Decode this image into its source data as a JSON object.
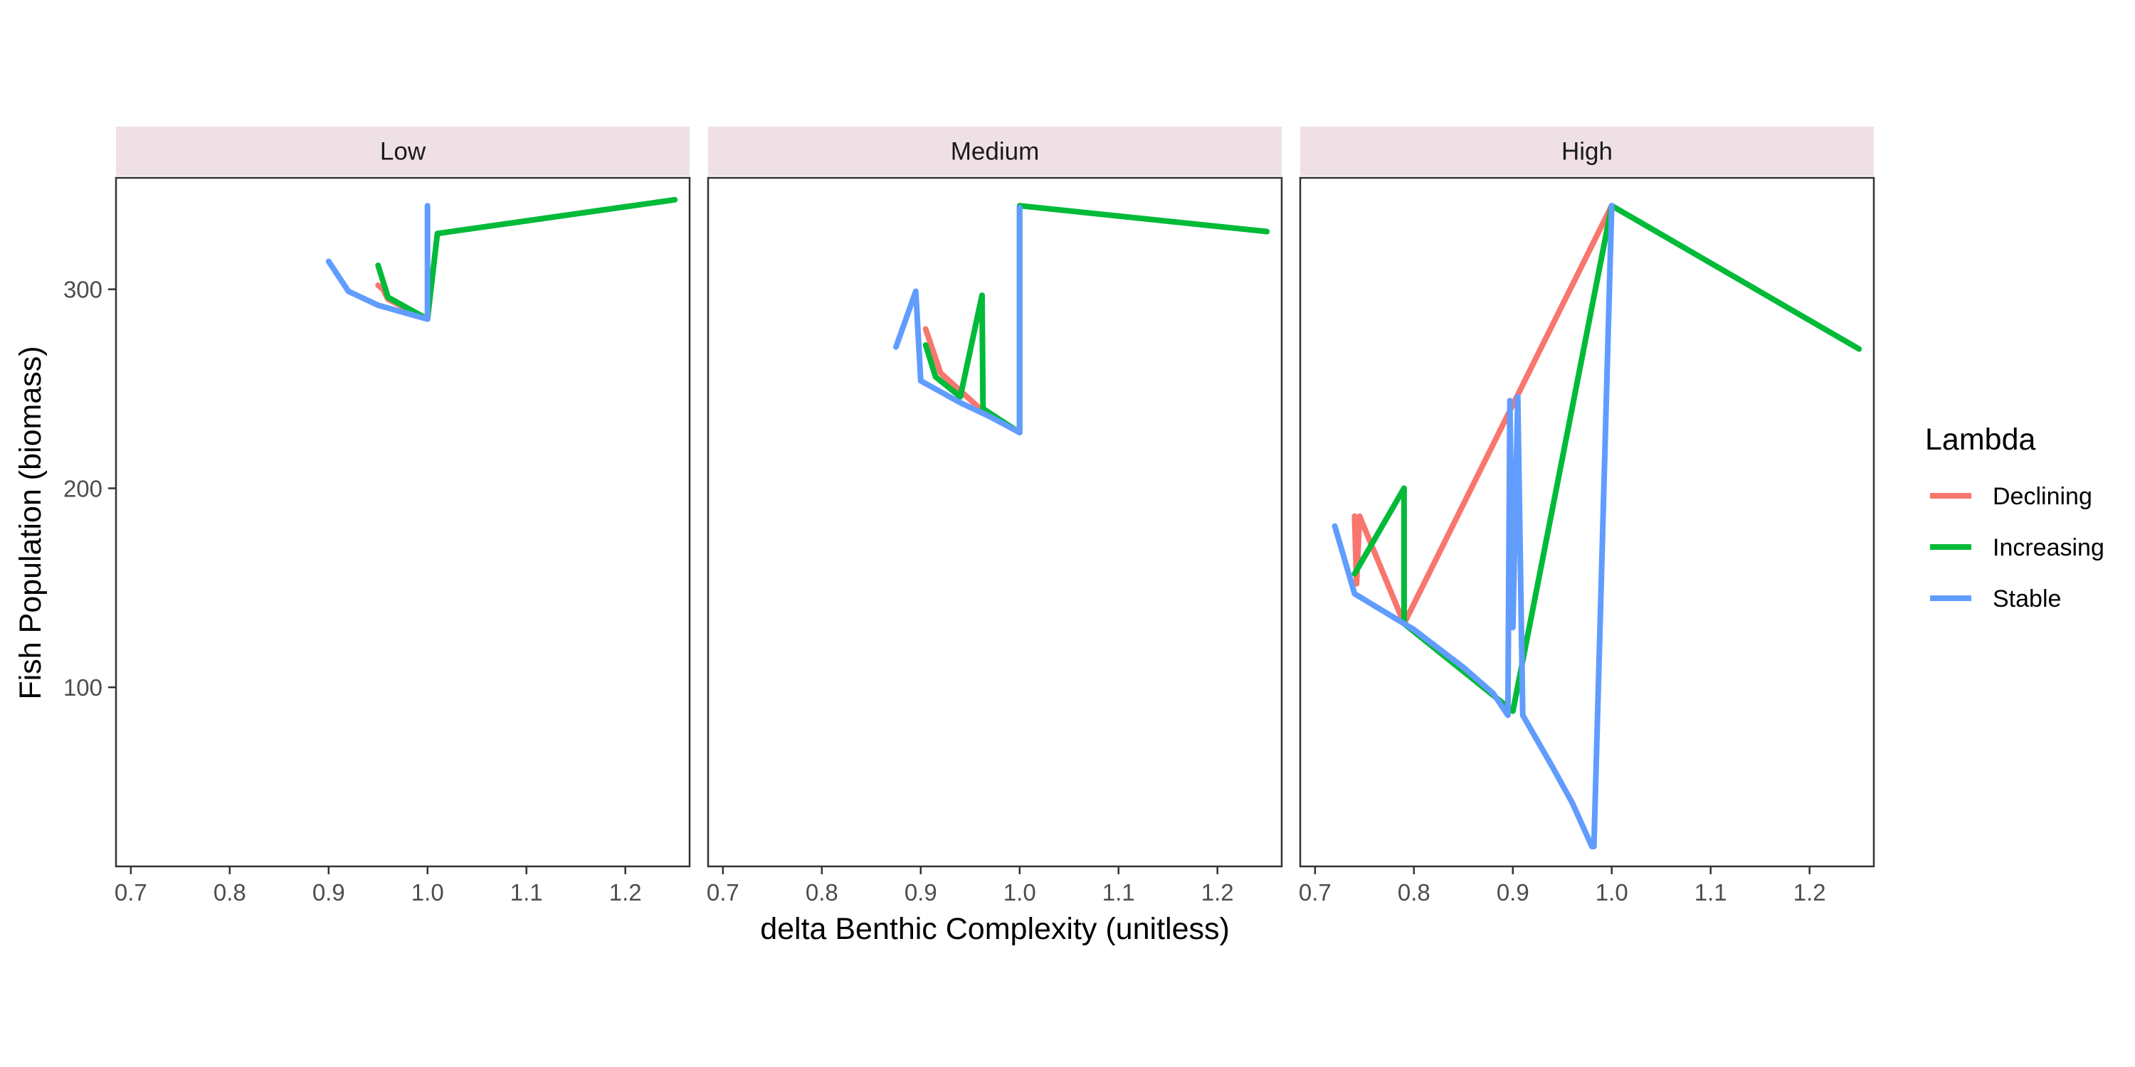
{
  "chart_data": {
    "type": "line",
    "xlabel": "delta Benthic Complexity (unitless)",
    "ylabel": "Fish Population (biomass)",
    "xlim": [
      0.685,
      1.265
    ],
    "ylim": [
      10,
      356
    ],
    "x_ticks": [
      0.7,
      0.8,
      0.9,
      1.0,
      1.1,
      1.2
    ],
    "x_tick_labels": [
      "0.7",
      "0.8",
      "0.9",
      "1.0",
      "1.1",
      "1.2"
    ],
    "y_ticks": [
      100,
      200,
      300
    ],
    "y_tick_labels": [
      "100",
      "200",
      "300"
    ],
    "legend": {
      "title": "Lambda",
      "placement": "right",
      "entries": [
        {
          "name": "Declining",
          "color": "#F8766D"
        },
        {
          "name": "Increasing",
          "color": "#00BA38"
        },
        {
          "name": "Stable",
          "color": "#619CFF"
        }
      ]
    },
    "panels": [
      {
        "label": "Low",
        "series": [
          {
            "name": "Declining",
            "points": [
              [
                0.95,
                302
              ],
              [
                0.955,
                300
              ],
              [
                0.96,
                295
              ],
              [
                1.0,
                285
              ]
            ]
          },
          {
            "name": "Increasing",
            "points": [
              [
                0.95,
                312
              ],
              [
                0.96,
                296
              ],
              [
                1.0,
                285
              ],
              [
                1.01,
                328
              ],
              [
                1.25,
                345
              ]
            ]
          },
          {
            "name": "Stable",
            "points": [
              [
                0.9,
                314
              ],
              [
                0.92,
                299
              ],
              [
                0.95,
                292
              ],
              [
                1.0,
                285
              ],
              [
                1.0,
                342
              ]
            ]
          }
        ]
      },
      {
        "label": "Medium",
        "series": [
          {
            "name": "Declining",
            "points": [
              [
                0.905,
                280
              ],
              [
                0.92,
                258
              ],
              [
                0.96,
                240
              ],
              [
                1.0,
                228
              ]
            ]
          },
          {
            "name": "Increasing",
            "points": [
              [
                0.905,
                272
              ],
              [
                0.915,
                256
              ],
              [
                0.94,
                246
              ],
              [
                0.962,
                297
              ],
              [
                0.963,
                240
              ],
              [
                1.0,
                228
              ],
              [
                1.0,
                342
              ],
              [
                1.25,
                329
              ]
            ]
          },
          {
            "name": "Stable",
            "points": [
              [
                0.875,
                271
              ],
              [
                0.895,
                299
              ],
              [
                0.9,
                254
              ],
              [
                0.94,
                243
              ],
              [
                0.97,
                236
              ],
              [
                1.0,
                228
              ],
              [
                1.0,
                341
              ]
            ]
          }
        ]
      },
      {
        "label": "High",
        "series": [
          {
            "name": "Declining",
            "points": [
              [
                0.74,
                186
              ],
              [
                0.742,
                152
              ],
              [
                0.745,
                186
              ],
              [
                0.79,
                132
              ],
              [
                1.0,
                342
              ]
            ]
          },
          {
            "name": "Increasing",
            "points": [
              [
                0.74,
                157
              ],
              [
                0.79,
                200
              ],
              [
                0.79,
                132
              ],
              [
                0.85,
                108
              ],
              [
                0.9,
                88
              ],
              [
                1.0,
                342
              ],
              [
                1.25,
                270
              ]
            ]
          },
          {
            "name": "Stable",
            "points": [
              [
                0.72,
                181
              ],
              [
                0.74,
                147
              ],
              [
                0.8,
                129
              ],
              [
                0.85,
                110
              ],
              [
                0.88,
                97
              ],
              [
                0.895,
                86
              ],
              [
                0.897,
                244
              ],
              [
                0.9,
                130
              ],
              [
                0.905,
                246
              ],
              [
                0.91,
                86
              ],
              [
                0.94,
                60
              ],
              [
                0.96,
                42
              ],
              [
                0.98,
                20
              ],
              [
                0.982,
                20
              ],
              [
                1.0,
                342
              ]
            ]
          }
        ]
      }
    ]
  }
}
